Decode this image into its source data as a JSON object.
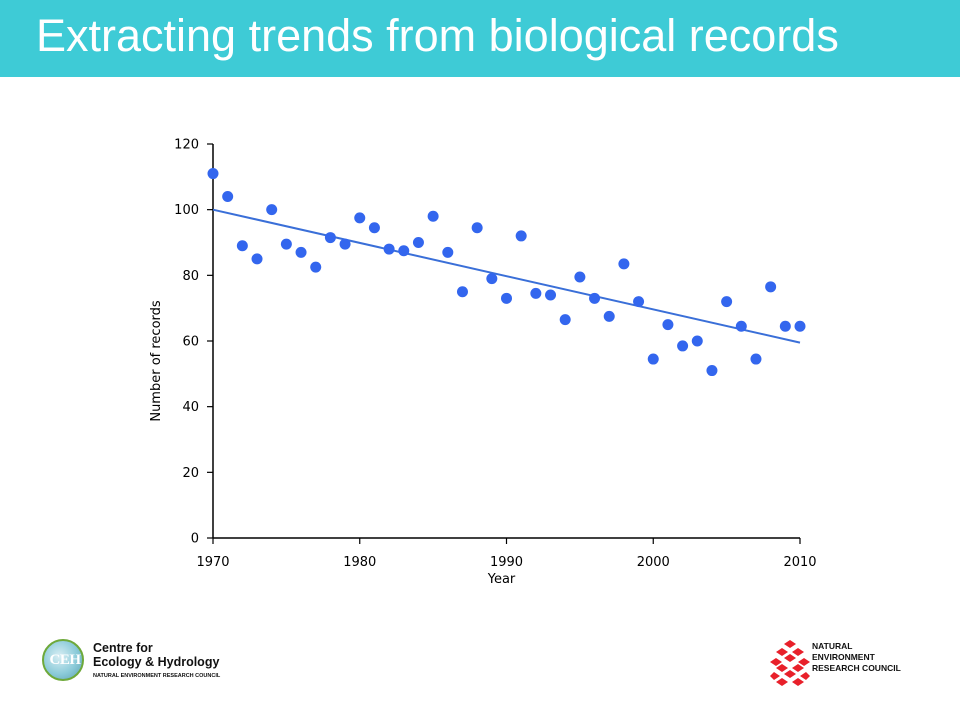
{
  "title": "Extracting trends from biological records",
  "chart_data": {
    "type": "scatter",
    "xlabel": "Year",
    "ylabel": "Number of records",
    "xlim": [
      1970,
      2010
    ],
    "ylim": [
      0,
      120
    ],
    "xticks": [
      1970,
      1980,
      1990,
      2000,
      2010
    ],
    "yticks": [
      0,
      20,
      40,
      60,
      80,
      100,
      120
    ],
    "grid": false,
    "point_color": "#3366ee",
    "trend_color": "#3a6fd8",
    "points": [
      {
        "x": 1970,
        "y": 111
      },
      {
        "x": 1971,
        "y": 104
      },
      {
        "x": 1972,
        "y": 89
      },
      {
        "x": 1973,
        "y": 85
      },
      {
        "x": 1974,
        "y": 100
      },
      {
        "x": 1975,
        "y": 89.5
      },
      {
        "x": 1976,
        "y": 87
      },
      {
        "x": 1977,
        "y": 82.5
      },
      {
        "x": 1978,
        "y": 91.5
      },
      {
        "x": 1979,
        "y": 89.5
      },
      {
        "x": 1980,
        "y": 97.5
      },
      {
        "x": 1981,
        "y": 94.5
      },
      {
        "x": 1982,
        "y": 88
      },
      {
        "x": 1983,
        "y": 87.5
      },
      {
        "x": 1984,
        "y": 90
      },
      {
        "x": 1985,
        "y": 98
      },
      {
        "x": 1986,
        "y": 87
      },
      {
        "x": 1987,
        "y": 75
      },
      {
        "x": 1988,
        "y": 94.5
      },
      {
        "x": 1989,
        "y": 79
      },
      {
        "x": 1990,
        "y": 73
      },
      {
        "x": 1991,
        "y": 92
      },
      {
        "x": 1992,
        "y": 74.5
      },
      {
        "x": 1993,
        "y": 74
      },
      {
        "x": 1994,
        "y": 66.5
      },
      {
        "x": 1995,
        "y": 79.5
      },
      {
        "x": 1996,
        "y": 73
      },
      {
        "x": 1997,
        "y": 67.5
      },
      {
        "x": 1998,
        "y": 83.5
      },
      {
        "x": 1999,
        "y": 72
      },
      {
        "x": 2000,
        "y": 54.5
      },
      {
        "x": 2001,
        "y": 65
      },
      {
        "x": 2002,
        "y": 58.5
      },
      {
        "x": 2003,
        "y": 60
      },
      {
        "x": 2004,
        "y": 51
      },
      {
        "x": 2005,
        "y": 72
      },
      {
        "x": 2006,
        "y": 64.5
      },
      {
        "x": 2007,
        "y": 54.5
      },
      {
        "x": 2008,
        "y": 76.5
      },
      {
        "x": 2009,
        "y": 64.5
      },
      {
        "x": 2010,
        "y": 64.5
      }
    ],
    "trendline": {
      "x": [
        1970,
        2010
      ],
      "y": [
        100,
        59.5
      ]
    }
  },
  "logos": {
    "ceh": {
      "name_line1": "Centre for",
      "name_line2": "Ecology & Hydrology",
      "subtitle": "NATURAL ENVIRONMENT RESEARCH COUNCIL"
    },
    "nerc": {
      "line1": "NATURAL",
      "line2": "ENVIRONMENT",
      "line3": "RESEARCH COUNCIL"
    }
  }
}
